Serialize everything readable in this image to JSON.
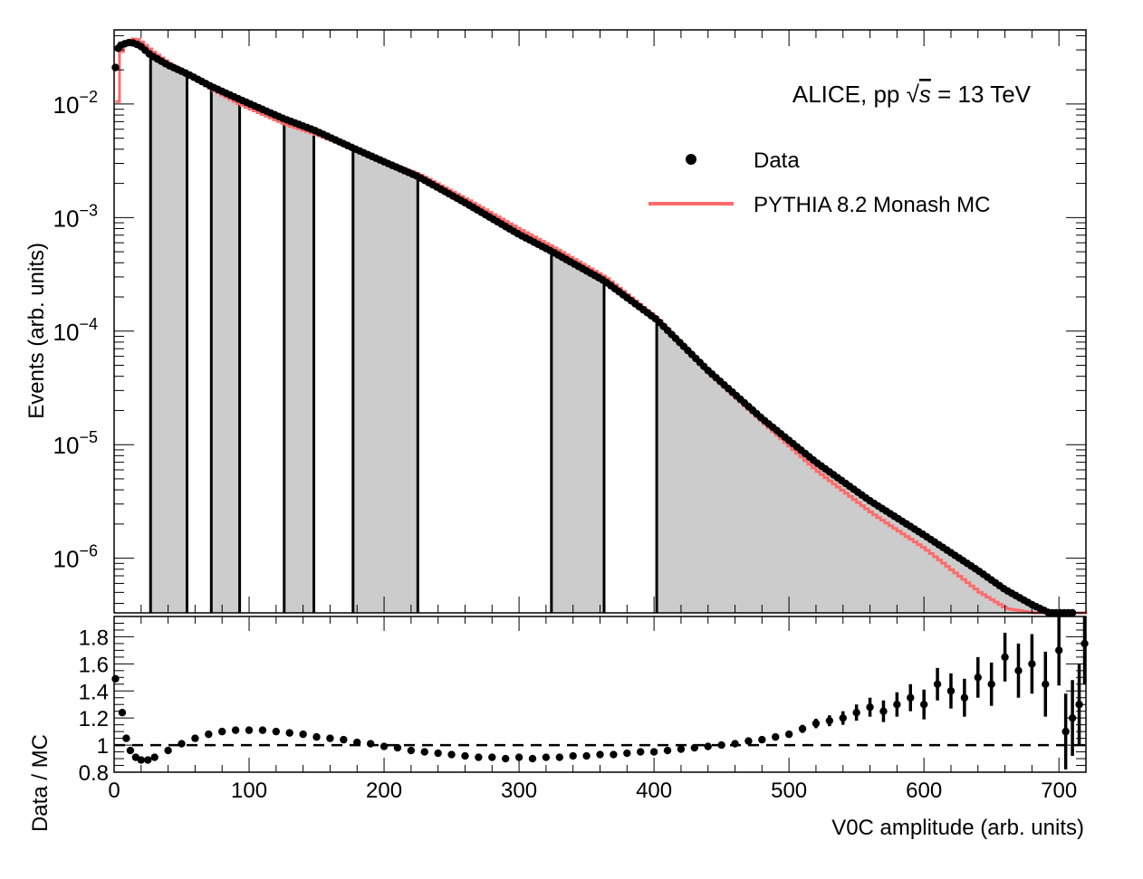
{
  "chart_data": [
    {
      "type": "histogram",
      "panel": "upper",
      "yscale": "log",
      "xlim": [
        0,
        720
      ],
      "ylim": [
        3.3e-07,
        0.045
      ],
      "ylabel": "Events (arb. units)",
      "ytick_labels": [
        {
          "value": 0.01,
          "base": "10",
          "exp": "−2"
        },
        {
          "value": 0.001,
          "base": "10",
          "exp": "−3"
        },
        {
          "value": 0.0001,
          "base": "10",
          "exp": "−4"
        },
        {
          "value": 1e-05,
          "base": "10",
          "exp": "−5"
        },
        {
          "value": 1e-06,
          "base": "10",
          "exp": "−6"
        }
      ],
      "annotation": {
        "prefix": "ALICE, pp ",
        "sqrt": "√",
        "var": "s",
        "suffix": " = 13 TeV"
      },
      "legend": {
        "placement": "top-right",
        "entries": [
          {
            "label": "Data",
            "marker": "circle",
            "color": "#000000"
          },
          {
            "label": "PYTHIA 8.2 Monash MC",
            "marker": "line",
            "color": "#ff6b6b"
          }
        ]
      },
      "class_boundaries": [
        0,
        27,
        54,
        72,
        93,
        126,
        148,
        177,
        225,
        324,
        363,
        402,
        720
      ],
      "class_fills": [
        "none",
        "#cccccc",
        "none",
        "#cccccc",
        "none",
        "#cccccc",
        "none",
        "#cccccc",
        "none",
        "#cccccc",
        "none",
        "#cccccc"
      ],
      "series": [
        {
          "name": "Data",
          "color": "#000000",
          "x": [
            1,
            3,
            5,
            8,
            12,
            16,
            20,
            27,
            40,
            54,
            72,
            93,
            126,
            148,
            177,
            200,
            225,
            260,
            300,
            324,
            363,
            402,
            440,
            480,
            520,
            560,
            600,
            640,
            660,
            680,
            700,
            710
          ],
          "y": [
            0.021,
            0.031,
            0.033,
            0.034,
            0.035,
            0.034,
            0.032,
            0.027,
            0.022,
            0.0185,
            0.0143,
            0.011,
            0.0074,
            0.0059,
            0.0041,
            0.0031,
            0.0023,
            0.00135,
            0.00071,
            0.000505,
            0.000278,
            0.000126,
            4.5e-05,
            1.7e-05,
            7e-06,
            3.2e-06,
            1.6e-06,
            7.8e-07,
            5.3e-07,
            3.9e-07,
            3e-07,
            2.8e-07
          ]
        },
        {
          "name": "PYTHIA 8.2 Monash MC",
          "color": "#ff6b6b",
          "x": [
            2,
            3,
            5,
            8,
            12,
            16,
            20,
            27,
            40,
            54,
            72,
            93,
            126,
            148,
            177,
            200,
            225,
            260,
            300,
            324,
            363,
            402,
            440,
            480,
            520,
            560,
            600,
            640,
            660,
            680,
            700,
            720
          ],
          "y": [
            0.0105,
            0.027,
            0.031,
            0.035,
            0.0375,
            0.037,
            0.0345,
            0.0292,
            0.0227,
            0.018,
            0.0133,
            0.0098,
            0.0066,
            0.0054,
            0.004,
            0.0031,
            0.0024,
            0.00145,
            0.00078,
            0.00055,
            0.000297,
            0.000127,
            4.2e-05,
            1.55e-05,
            5.8e-06,
            2.5e-06,
            1.2e-06,
            5e-07,
            3.6e-07,
            3.3e-07,
            3.3e-07,
            3.3e-07
          ]
        }
      ]
    },
    {
      "type": "scatter",
      "panel": "lower",
      "xlabel": "V0C amplitude (arb. units)",
      "ylabel": "Data / MC",
      "xlim": [
        0,
        720
      ],
      "ylim": [
        0.8,
        1.95
      ],
      "reference_line": 1,
      "xtick_labels": [
        "0",
        "100",
        "200",
        "300",
        "400",
        "500",
        "600",
        "700"
      ],
      "xtick_values": [
        0,
        100,
        200,
        300,
        400,
        500,
        600,
        700
      ],
      "ytick_labels": [
        "0.8",
        "1",
        "1.2",
        "1.4",
        "1.6",
        "1.8"
      ],
      "ytick_values": [
        0.8,
        1.0,
        1.2,
        1.4,
        1.6,
        1.8
      ],
      "series": [
        {
          "name": "Data / MC",
          "color": "#000000",
          "x": [
            1,
            6,
            9,
            12,
            16,
            20,
            25,
            30,
            40,
            50,
            60,
            70,
            80,
            90,
            100,
            110,
            120,
            130,
            140,
            150,
            160,
            170,
            180,
            190,
            200,
            210,
            220,
            230,
            240,
            250,
            260,
            270,
            280,
            290,
            300,
            310,
            320,
            330,
            340,
            350,
            360,
            370,
            380,
            390,
            400,
            410,
            420,
            430,
            440,
            450,
            460,
            470,
            480,
            490,
            500,
            510,
            520,
            530,
            540,
            550,
            560,
            570,
            580,
            590,
            600,
            610,
            620,
            630,
            640,
            650,
            660,
            670,
            680,
            690,
            700,
            705,
            710,
            715,
            719
          ],
          "y": [
            1.49,
            1.24,
            1.05,
            0.96,
            0.91,
            0.89,
            0.89,
            0.91,
            0.96,
            1.01,
            1.05,
            1.08,
            1.1,
            1.11,
            1.11,
            1.11,
            1.1,
            1.09,
            1.08,
            1.06,
            1.05,
            1.04,
            1.02,
            1.01,
            0.99,
            0.98,
            0.96,
            0.95,
            0.94,
            0.93,
            0.92,
            0.91,
            0.91,
            0.9,
            0.91,
            0.9,
            0.91,
            0.91,
            0.92,
            0.92,
            0.93,
            0.93,
            0.94,
            0.95,
            0.95,
            0.96,
            0.97,
            0.98,
            0.99,
            1.0,
            1.01,
            1.03,
            1.04,
            1.06,
            1.08,
            1.12,
            1.16,
            1.18,
            1.2,
            1.24,
            1.28,
            1.25,
            1.3,
            1.35,
            1.3,
            1.45,
            1.4,
            1.35,
            1.5,
            1.45,
            1.65,
            1.55,
            1.6,
            1.45,
            1.7,
            1.1,
            1.2,
            1.3,
            1.75
          ],
          "err": [
            0.01,
            0.01,
            0.01,
            0.005,
            0.005,
            0.005,
            0.005,
            0.005,
            0.005,
            0.005,
            0.005,
            0.005,
            0.005,
            0.005,
            0.005,
            0.005,
            0.005,
            0.005,
            0.005,
            0.005,
            0.005,
            0.005,
            0.005,
            0.005,
            0.005,
            0.005,
            0.005,
            0.005,
            0.005,
            0.005,
            0.005,
            0.005,
            0.005,
            0.005,
            0.005,
            0.005,
            0.005,
            0.005,
            0.005,
            0.005,
            0.005,
            0.005,
            0.005,
            0.005,
            0.006,
            0.006,
            0.007,
            0.008,
            0.009,
            0.01,
            0.012,
            0.014,
            0.016,
            0.02,
            0.025,
            0.03,
            0.035,
            0.04,
            0.05,
            0.06,
            0.07,
            0.08,
            0.09,
            0.1,
            0.11,
            0.12,
            0.13,
            0.14,
            0.15,
            0.16,
            0.18,
            0.2,
            0.22,
            0.24,
            0.26,
            0.28,
            0.28,
            0.3,
            0.3
          ]
        }
      ]
    }
  ]
}
